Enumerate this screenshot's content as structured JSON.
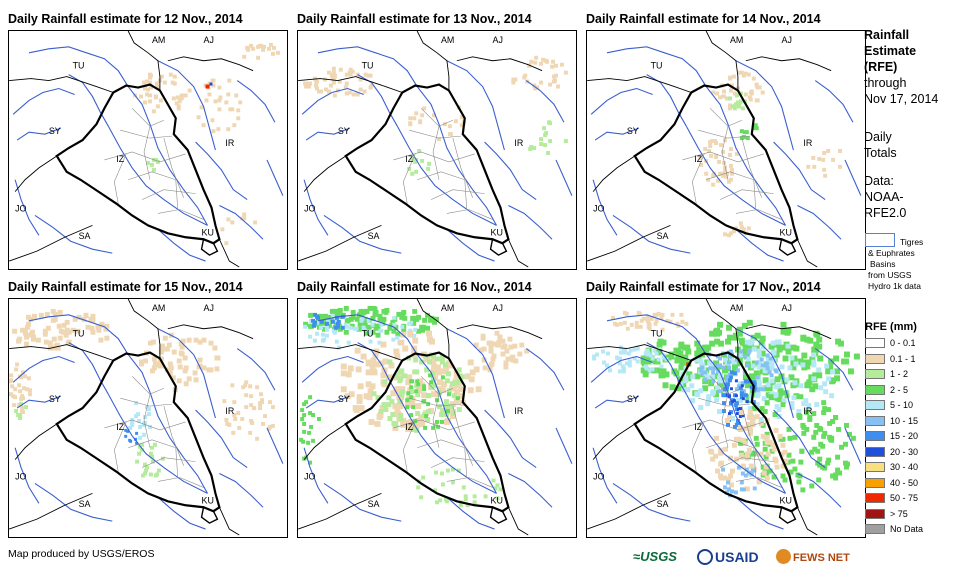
{
  "panels": [
    {
      "title": "Daily Rainfall estimate for 12 Nov., 2014",
      "level": 0
    },
    {
      "title": "Daily Rainfall estimate for 13 Nov., 2014",
      "level": 1
    },
    {
      "title": "Daily Rainfall estimate for 14 Nov., 2014",
      "level": 2
    },
    {
      "title": "Daily Rainfall estimate for 15 Nov., 2014",
      "level": 3
    },
    {
      "title": "Daily Rainfall estimate for 16 Nov., 2014",
      "level": 4
    },
    {
      "title": "Daily Rainfall estimate for 17 Nov., 2014",
      "level": 5
    }
  ],
  "country_labels": {
    "AM": "AM",
    "AJ": "AJ",
    "TU": "TU",
    "SY": "SY",
    "IZ": "IZ",
    "IR": "IR",
    "JO": "JO",
    "SA": "SA",
    "KU": "KU"
  },
  "legend": {
    "title_lines": [
      "Rainfall",
      "Estimate",
      "(RFE)"
    ],
    "through": "through",
    "date": "Nov 17, 2014",
    "daily": "Daily",
    "totals": "Totals",
    "data_label": "Data:",
    "data_source_1": "NOAA-",
    "data_source_2": "RFE2.0",
    "basin_line1": "Tigres",
    "basin_line2": "& Euphrates",
    "basin_line3": "Basins",
    "basin_line4": "from USGS",
    "basin_line5": "Hydro 1k data",
    "rfe_title": "RFE (mm)",
    "classes": [
      {
        "label": "0 - 0.1",
        "color": "#ffffff"
      },
      {
        "label": "0.1 - 1",
        "color": "#efd7b4"
      },
      {
        "label": "1 - 2",
        "color": "#b4ec9c"
      },
      {
        "label": "2 - 5",
        "color": "#66dc5e"
      },
      {
        "label": "5 - 10",
        "color": "#b4e8f6"
      },
      {
        "label": "10 - 15",
        "color": "#86c0f4"
      },
      {
        "label": "15 - 20",
        "color": "#3e8ef0"
      },
      {
        "label": "20 - 30",
        "color": "#1e50dc"
      },
      {
        "label": "30 - 40",
        "color": "#fade82"
      },
      {
        "label": "40 - 50",
        "color": "#f8a000"
      },
      {
        "label": "50 - 75",
        "color": "#f02800"
      },
      {
        "label": "> 75",
        "color": "#a01414"
      },
      {
        "label": "No Data",
        "color": "#a0a0a0"
      }
    ]
  },
  "footer": {
    "credit": "Map produced by USGS/EROS",
    "logo_usgs": "USGS",
    "logo_usaid": "USAID",
    "logo_fews": "FEWS NET"
  },
  "colors": {
    "basin": "#3a5fd0",
    "border": "#000000",
    "province": "#8a8a8a"
  }
}
